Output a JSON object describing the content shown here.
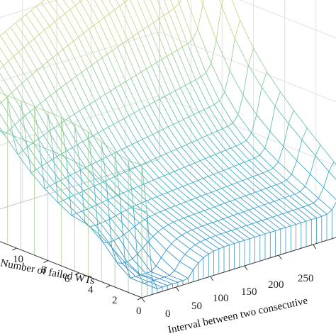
{
  "chart_data": {
    "type": "surface",
    "title": "",
    "xlabel": "Interval between two consecutive",
    "ylabel": "Number of failed WTs",
    "zlabel": "",
    "x_ticks": [
      "0",
      "50",
      "100",
      "150",
      "200",
      "250"
    ],
    "y_ticks": [
      "0",
      "2",
      "4",
      "6",
      "8",
      "10"
    ],
    "x_range": [
      0,
      280
    ],
    "y_range": [
      0,
      14
    ],
    "grid": true,
    "colormap": [
      "#2f86c8",
      "#3fb3c6",
      "#7fcaa4",
      "#c9d78a",
      "#ecd28a"
    ]
  }
}
